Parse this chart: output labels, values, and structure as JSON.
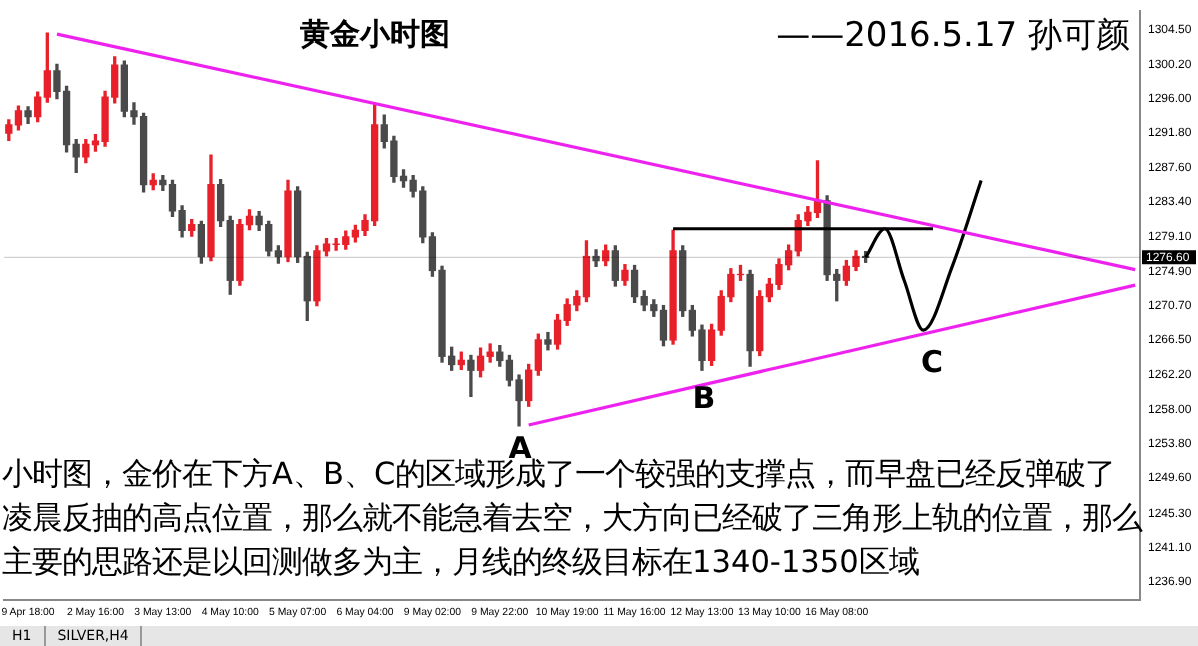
{
  "chart_data": {
    "type": "candlestick",
    "title": "黄金小时图",
    "subtitle": "——2016.5.17 孙可颜",
    "categories": [
      null,
      null,
      "9 Apr 18:00",
      null,
      null,
      null,
      null,
      null,
      null,
      "2 May 16:00",
      null,
      null,
      null,
      null,
      null,
      null,
      "3 May 13:00",
      null,
      null,
      null,
      null,
      null,
      null,
      "4 May 10:00",
      null,
      null,
      null,
      null,
      null,
      null,
      "5 May 07:00",
      null,
      null,
      null,
      null,
      null,
      null,
      "6 May 04:00",
      null,
      null,
      null,
      null,
      null,
      null,
      "9 May 02:00",
      null,
      null,
      null,
      null,
      null,
      null,
      "9 May 22:00",
      null,
      null,
      null,
      null,
      null,
      null,
      "10 May 19:00",
      null,
      null,
      null,
      null,
      null,
      null,
      "11 May 16:00",
      null,
      null,
      null,
      null,
      null,
      null,
      "12 May 13:00",
      null,
      null,
      null,
      null,
      null,
      null,
      "13 May 10:00",
      null,
      null,
      null,
      null,
      null,
      null,
      "16 May 08:00",
      null,
      null,
      null,
      null,
      null,
      null,
      null,
      null,
      null,
      null,
      null,
      null,
      null,
      null,
      null,
      null,
      null,
      null,
      null,
      null,
      null,
      null,
      null,
      null,
      null,
      null,
      null,
      null,
      null,
      null,
      null
    ],
    "ohlc": [
      [
        1291.8,
        1293.4,
        1290.9,
        1292.8
      ],
      [
        1292.8,
        1295.1,
        1292.2,
        1294.5
      ],
      [
        1294.5,
        1295.0,
        1293.0,
        1293.8
      ],
      [
        1293.8,
        1296.8,
        1293.2,
        1296.2
      ],
      [
        1296.2,
        1304.0,
        1295.6,
        1299.4
      ],
      [
        1299.4,
        1300.2,
        1296.0,
        1296.9
      ],
      [
        1296.9,
        1297.5,
        1289.5,
        1290.4
      ],
      [
        1290.4,
        1291.0,
        1287.0,
        1288.9
      ],
      [
        1288.9,
        1291.0,
        1288.2,
        1290.4
      ],
      [
        1290.4,
        1291.6,
        1289.6,
        1290.8
      ],
      [
        1290.8,
        1296.9,
        1290.2,
        1296.2
      ],
      [
        1296.2,
        1301.1,
        1295.5,
        1300.1
      ],
      [
        1300.1,
        1300.6,
        1293.8,
        1294.5
      ],
      [
        1294.5,
        1295.5,
        1292.9,
        1293.8
      ],
      [
        1293.8,
        1294.2,
        1284.6,
        1285.5
      ],
      [
        1285.5,
        1286.8,
        1284.9,
        1286.0
      ],
      [
        1286.0,
        1286.6,
        1284.8,
        1285.5
      ],
      [
        1285.5,
        1286.0,
        1281.6,
        1282.3
      ],
      [
        1282.3,
        1282.9,
        1279.1,
        1279.9
      ],
      [
        1279.9,
        1281.2,
        1279.2,
        1280.6
      ],
      [
        1280.6,
        1281.0,
        1275.9,
        1276.7
      ],
      [
        1276.7,
        1289.1,
        1276.2,
        1285.5
      ],
      [
        1285.5,
        1286.1,
        1280.4,
        1281.1
      ],
      [
        1281.1,
        1281.6,
        1272.1,
        1273.8
      ],
      [
        1273.8,
        1281.2,
        1273.2,
        1280.6
      ],
      [
        1280.6,
        1282.4,
        1280.0,
        1281.6
      ],
      [
        1281.6,
        1282.2,
        1279.9,
        1280.6
      ],
      [
        1280.6,
        1281.0,
        1276.8,
        1277.4
      ],
      [
        1277.4,
        1278.0,
        1275.9,
        1276.7
      ],
      [
        1276.7,
        1286.0,
        1276.1,
        1284.7
      ],
      [
        1284.7,
        1285.2,
        1276.0,
        1276.7
      ],
      [
        1276.7,
        1277.2,
        1268.9,
        1271.3
      ],
      [
        1271.3,
        1278.0,
        1270.7,
        1277.4
      ],
      [
        1277.4,
        1278.9,
        1276.8,
        1278.2
      ],
      [
        1278.2,
        1278.9,
        1277.5,
        1278.2
      ],
      [
        1278.2,
        1279.8,
        1277.6,
        1279.1
      ],
      [
        1279.1,
        1280.5,
        1278.5,
        1279.9
      ],
      [
        1279.9,
        1281.8,
        1279.3,
        1281.1
      ],
      [
        1281.1,
        1295.2,
        1280.5,
        1292.8
      ],
      [
        1292.8,
        1294.0,
        1290.0,
        1290.8
      ],
      [
        1290.8,
        1291.4,
        1285.8,
        1286.5
      ],
      [
        1286.5,
        1287.3,
        1285.2,
        1286.0
      ],
      [
        1286.0,
        1286.6,
        1284.0,
        1284.7
      ],
      [
        1284.7,
        1285.2,
        1278.4,
        1279.1
      ],
      [
        1279.1,
        1279.6,
        1274.3,
        1275.0
      ],
      [
        1275.0,
        1275.5,
        1263.8,
        1264.5
      ],
      [
        1264.5,
        1265.6,
        1262.8,
        1263.5
      ],
      [
        1263.5,
        1265.0,
        1262.9,
        1264.0
      ],
      [
        1264.0,
        1264.6,
        1259.6,
        1262.8
      ],
      [
        1262.8,
        1265.5,
        1262.0,
        1264.5
      ],
      [
        1264.5,
        1266.0,
        1263.8,
        1265.0
      ],
      [
        1265.0,
        1265.8,
        1263.3,
        1264.0
      ],
      [
        1264.0,
        1264.6,
        1260.9,
        1261.6
      ],
      [
        1261.6,
        1262.2,
        1256.0,
        1259.1
      ],
      [
        1259.1,
        1263.5,
        1258.4,
        1262.8
      ],
      [
        1262.8,
        1267.2,
        1262.2,
        1266.5
      ],
      [
        1266.5,
        1267.4,
        1265.3,
        1266.0
      ],
      [
        1266.0,
        1269.6,
        1265.4,
        1268.9
      ],
      [
        1268.9,
        1271.5,
        1268.3,
        1270.8
      ],
      [
        1270.8,
        1272.5,
        1270.1,
        1271.8
      ],
      [
        1271.8,
        1278.6,
        1271.2,
        1276.7
      ],
      [
        1276.7,
        1277.5,
        1275.5,
        1276.2
      ],
      [
        1276.2,
        1278.1,
        1275.6,
        1277.4
      ],
      [
        1277.4,
        1278.0,
        1273.1,
        1273.8
      ],
      [
        1273.8,
        1275.7,
        1273.2,
        1275.0
      ],
      [
        1275.0,
        1275.6,
        1271.1,
        1271.8
      ],
      [
        1271.8,
        1272.5,
        1270.1,
        1270.8
      ],
      [
        1270.8,
        1271.4,
        1269.4,
        1270.1
      ],
      [
        1270.1,
        1270.7,
        1265.8,
        1266.5
      ],
      [
        1266.5,
        1279.9,
        1266.0,
        1277.4
      ],
      [
        1277.4,
        1278.0,
        1269.4,
        1270.1
      ],
      [
        1270.1,
        1270.7,
        1267.0,
        1267.7
      ],
      [
        1267.7,
        1268.3,
        1262.8,
        1264.0
      ],
      [
        1264.0,
        1268.4,
        1263.4,
        1267.7
      ],
      [
        1267.7,
        1272.5,
        1267.1,
        1271.8
      ],
      [
        1271.8,
        1275.2,
        1271.2,
        1274.5
      ],
      [
        1274.5,
        1275.6,
        1273.8,
        1274.5
      ],
      [
        1274.5,
        1275.0,
        1263.3,
        1265.2
      ],
      [
        1265.2,
        1272.5,
        1264.6,
        1271.8
      ],
      [
        1271.8,
        1274.0,
        1271.2,
        1273.3
      ],
      [
        1273.3,
        1276.4,
        1272.7,
        1275.7
      ],
      [
        1275.7,
        1278.1,
        1275.1,
        1277.4
      ],
      [
        1277.4,
        1281.8,
        1276.8,
        1281.1
      ],
      [
        1281.1,
        1282.8,
        1280.5,
        1282.1
      ],
      [
        1282.1,
        1288.4,
        1281.5,
        1283.5
      ],
      [
        1283.5,
        1284.1,
        1273.8,
        1274.5
      ],
      [
        1274.5,
        1275.1,
        1271.3,
        1273.8
      ],
      [
        1273.8,
        1276.2,
        1273.2,
        1275.5
      ],
      [
        1275.5,
        1277.4,
        1275.0,
        1276.7
      ],
      [
        1276.7,
        1277.3,
        1276.0,
        1276.6
      ],
      null,
      null,
      null,
      null,
      null,
      null,
      null,
      null,
      null,
      null,
      null,
      null,
      null,
      null,
      null,
      null,
      null,
      null,
      null,
      null,
      null,
      null,
      null,
      null,
      null,
      null,
      null,
      null
    ],
    "series": [
      {
        "type": "line",
        "color": "#ee22ee",
        "values": [
          null,
          null,
          null,
          null,
          null,
          1303.9,
          null,
          null,
          null,
          null,
          null,
          null,
          null,
          null,
          null,
          null,
          null,
          null,
          null,
          null,
          null,
          null,
          null,
          null,
          null,
          null,
          null,
          null,
          null,
          null,
          null,
          null,
          null,
          null,
          null,
          null,
          null,
          null,
          null,
          null,
          null,
          null,
          null,
          null,
          null,
          null,
          null,
          null,
          null,
          null,
          null,
          null,
          null,
          null,
          null,
          null,
          null,
          null,
          null,
          null,
          null,
          null,
          null,
          null,
          null,
          null,
          null,
          null,
          null,
          null,
          null,
          null,
          null,
          null,
          null,
          null,
          null,
          null,
          null,
          null,
          null,
          null,
          null,
          null,
          null,
          null,
          null,
          null,
          null,
          null,
          null,
          null,
          null,
          null,
          null,
          null,
          null,
          null,
          null,
          null,
          null,
          null,
          null,
          null,
          null,
          null,
          null,
          null,
          null,
          null,
          null,
          null,
          null,
          null,
          null,
          null,
          null,
          1275.1
        ]
      },
      {
        "type": "line",
        "color": "#ee22ee",
        "values": [
          null,
          null,
          null,
          null,
          null,
          null,
          null,
          null,
          null,
          null,
          null,
          null,
          null,
          null,
          null,
          null,
          null,
          null,
          null,
          null,
          null,
          null,
          null,
          null,
          null,
          null,
          null,
          null,
          null,
          null,
          null,
          null,
          null,
          null,
          null,
          null,
          null,
          null,
          null,
          null,
          null,
          null,
          null,
          null,
          null,
          null,
          null,
          null,
          null,
          null,
          null,
          null,
          null,
          null,
          1256.1,
          null,
          null,
          null,
          null,
          null,
          null,
          null,
          null,
          null,
          null,
          null,
          null,
          null,
          null,
          null,
          null,
          null,
          null,
          null,
          null,
          null,
          null,
          null,
          null,
          null,
          null,
          null,
          null,
          null,
          null,
          null,
          null,
          null,
          null,
          null,
          null,
          null,
          null,
          null,
          null,
          null,
          null,
          null,
          null,
          null,
          null,
          null,
          null,
          null,
          null,
          null,
          null,
          null,
          null,
          null,
          null,
          null,
          null,
          null,
          null,
          null,
          null,
          1273.2
        ]
      },
      {
        "type": "line",
        "color": "#000000",
        "values": [
          null,
          null,
          null,
          null,
          null,
          null,
          null,
          null,
          null,
          null,
          null,
          null,
          null,
          null,
          null,
          null,
          null,
          null,
          null,
          null,
          null,
          null,
          null,
          null,
          null,
          null,
          null,
          null,
          null,
          null,
          null,
          null,
          null,
          null,
          null,
          null,
          null,
          null,
          null,
          null,
          null,
          null,
          null,
          null,
          null,
          null,
          null,
          null,
          null,
          null,
          null,
          null,
          null,
          null,
          null,
          null,
          null,
          null,
          null,
          null,
          null,
          null,
          null,
          null,
          null,
          null,
          null,
          null,
          null,
          1280.1,
          null,
          null,
          null,
          null,
          null,
          null,
          null,
          null,
          null,
          null,
          null,
          null,
          null,
          null,
          null,
          null,
          null,
          null,
          null,
          null,
          null,
          null,
          null,
          null,
          null,
          null,
          1280.1,
          null,
          null,
          null,
          null,
          null,
          null,
          null,
          null,
          null,
          null,
          null,
          null,
          null,
          null,
          null,
          null,
          null,
          null,
          null,
          null,
          null
        ]
      },
      {
        "type": "line",
        "color": "#000000",
        "values": [
          null,
          null,
          null,
          null,
          null,
          null,
          null,
          null,
          null,
          null,
          null,
          null,
          null,
          null,
          null,
          null,
          null,
          null,
          null,
          null,
          null,
          null,
          null,
          null,
          null,
          null,
          null,
          null,
          null,
          null,
          null,
          null,
          null,
          null,
          null,
          null,
          null,
          null,
          null,
          null,
          null,
          null,
          null,
          null,
          null,
          null,
          null,
          null,
          null,
          null,
          null,
          null,
          null,
          null,
          null,
          null,
          null,
          null,
          null,
          null,
          null,
          null,
          null,
          null,
          null,
          null,
          null,
          null,
          null,
          null,
          null,
          null,
          null,
          null,
          null,
          null,
          null,
          null,
          null,
          null,
          null,
          null,
          null,
          null,
          null,
          null,
          null,
          null,
          null,
          1276.6,
          null,
          1280.1,
          null,
          1273.8,
          null,
          1267.7,
          null,
          null,
          1275.5,
          null,
          null,
          1286.0,
          null,
          null,
          null,
          null,
          null,
          null,
          null,
          null,
          null,
          null,
          null,
          null,
          null,
          null,
          null,
          null
        ]
      }
    ],
    "ylim": [
      1234.7,
      1306.7
    ],
    "yticks": [
      {
        "value": 1304.5,
        "label": "1304.50"
      },
      {
        "value": 1300.2,
        "label": "1300.20"
      },
      {
        "value": 1296.0,
        "label": "1296.00"
      },
      {
        "value": 1291.8,
        "label": "1291.80"
      },
      {
        "value": 1287.6,
        "label": "1287.60"
      },
      {
        "value": 1283.4,
        "label": "1283.40"
      },
      {
        "value": 1279.1,
        "label": "1279.10"
      },
      {
        "value": 1274.9,
        "label": "1274.90"
      },
      {
        "value": 1270.7,
        "label": "1270.70"
      },
      {
        "value": 1266.5,
        "label": "1266.50"
      },
      {
        "value": 1262.2,
        "label": "1262.20"
      },
      {
        "value": 1258.0,
        "label": "1258.00"
      },
      {
        "value": 1253.8,
        "label": "1253.80"
      },
      {
        "value": 1249.6,
        "label": "1249.60"
      },
      {
        "value": 1245.3,
        "label": "1245.30"
      },
      {
        "value": 1241.1,
        "label": "1241.10"
      },
      {
        "value": 1236.9,
        "label": "1236.90"
      }
    ],
    "ref_lines": [
      {
        "axis": "y",
        "value": 1276.6,
        "label": "1276.60",
        "color": "#000000"
      }
    ],
    "annotations": [
      "A",
      "B",
      "C",
      "小时图，金价在下方A、B、C的区域形成了一个较强的支撑点，而早盘已经反弹破了凌晨反抽的高点位置，那么就不能急着去空，大方向已经破了三角形上轨的位置，那么主要的思路还是以回测做多为主，月线的终级目标在1340-1350区域",
      "H1",
      "SILVER,H4"
    ],
    "grid": false,
    "legend": false
  }
}
